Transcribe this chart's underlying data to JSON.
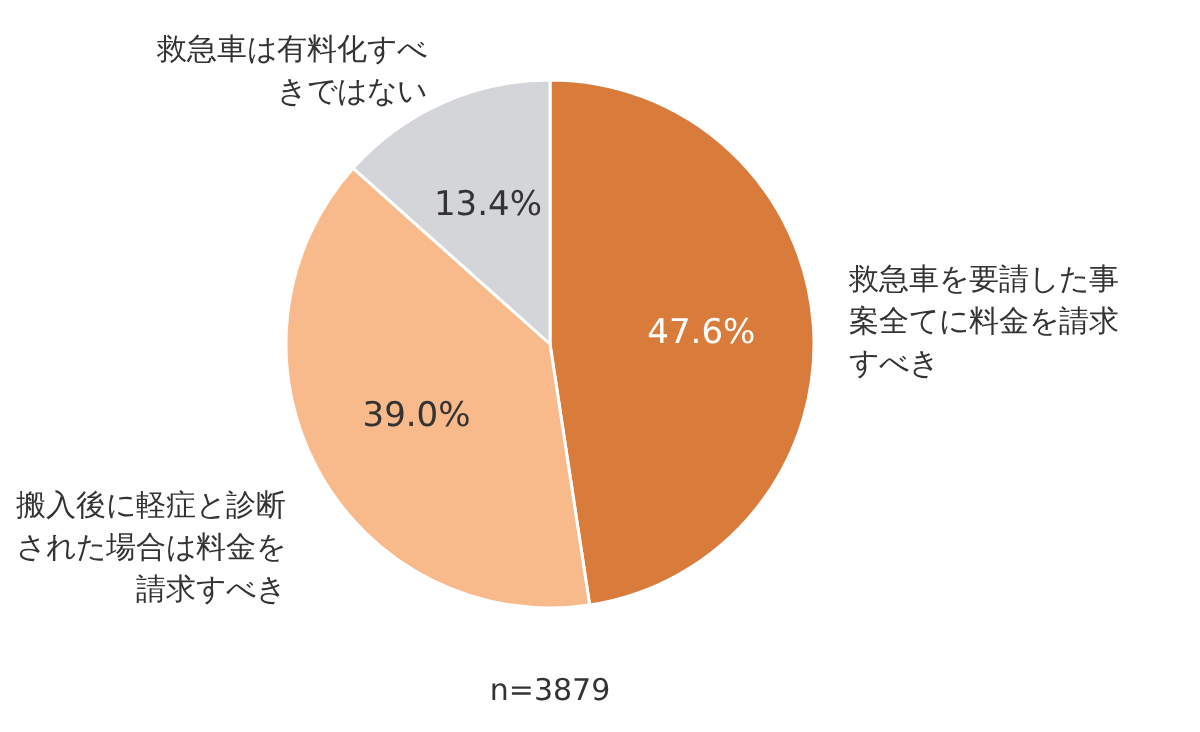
{
  "chart_data": {
    "type": "pie",
    "categories": [
      "救急車を要請した事案全てに料金を請求すべき",
      "搬入後に軽症と診断された場合は料金を請求すべき",
      "救急車は有料化すべきではない"
    ],
    "values": [
      47.6,
      39.0,
      13.4
    ],
    "colors": [
      "#d97c3b",
      "#f8b98b",
      "#d3d5d9"
    ],
    "value_labels": [
      "47.6%",
      "39.0%",
      "13.4%"
    ],
    "annotations": [
      "n=3879"
    ]
  }
}
